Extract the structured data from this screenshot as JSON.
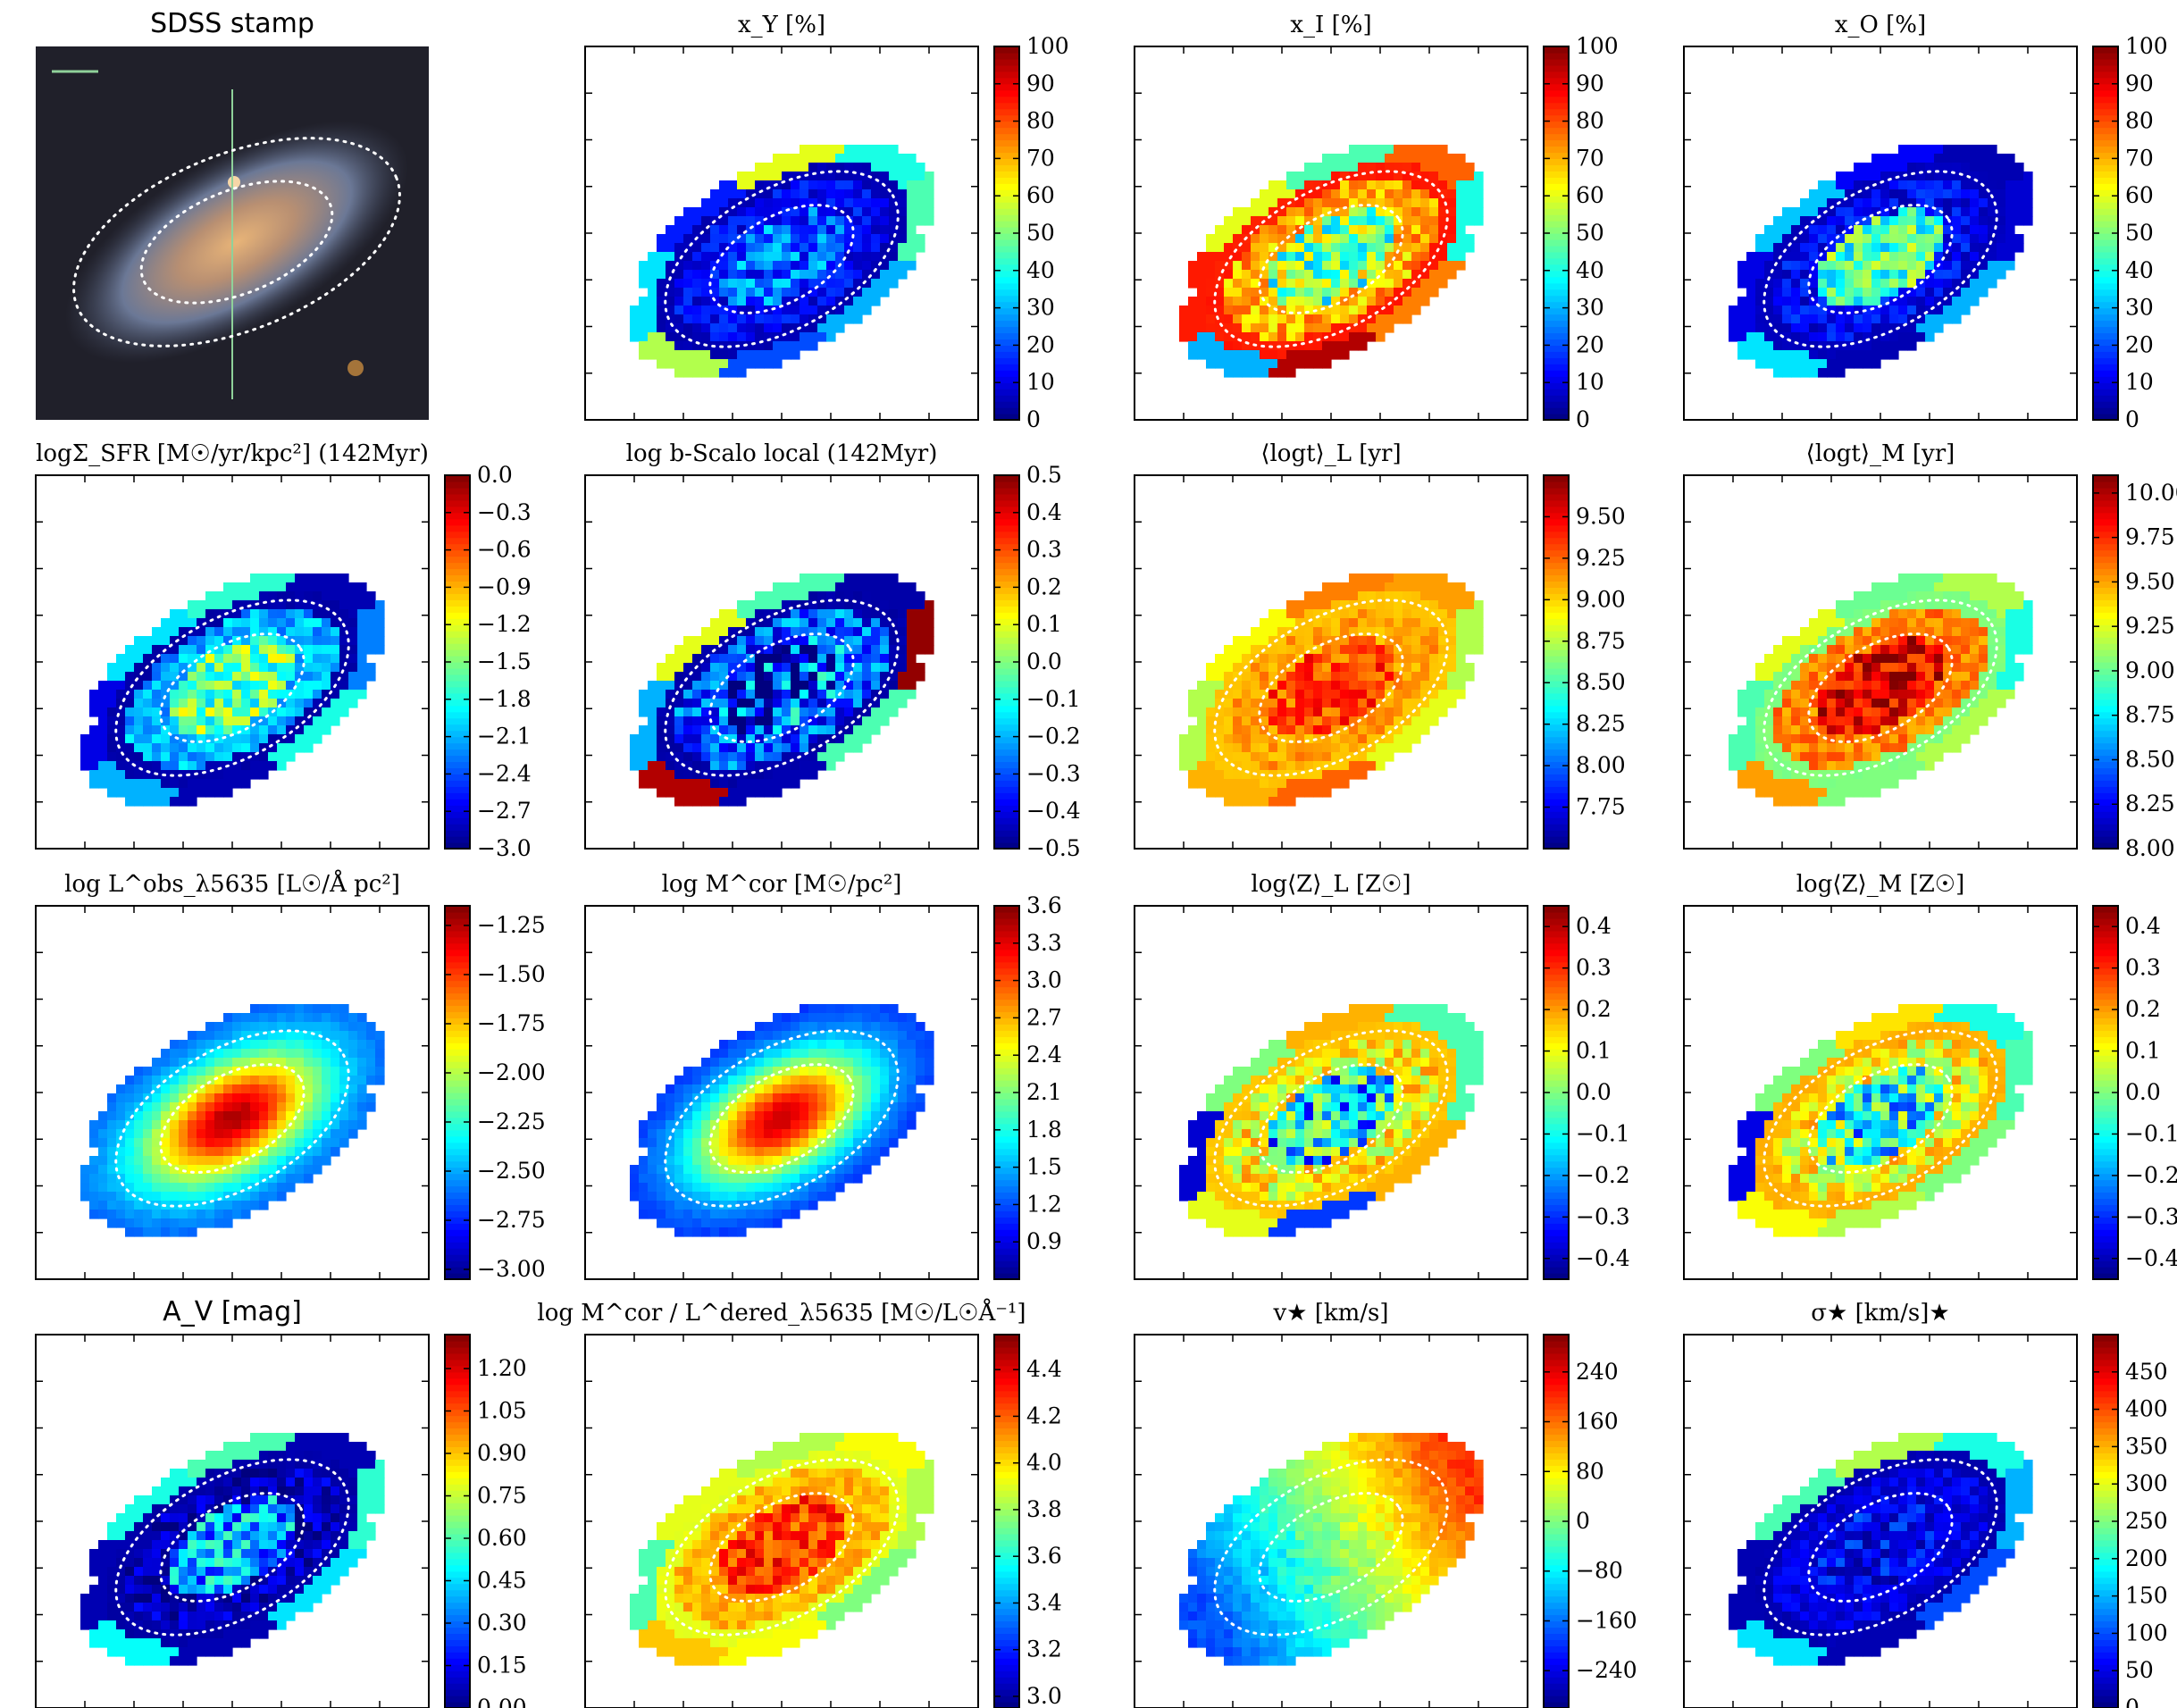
{
  "figure": {
    "colormap": "jet",
    "jet_stops": [
      "#00007f",
      "#0000ff",
      "#007fff",
      "#00ffff",
      "#7fff7f",
      "#ffff00",
      "#ff7f00",
      "#ff0000",
      "#7f0000"
    ],
    "region_outline_color": "#ffffff"
  },
  "chart_data": [
    {
      "type": "image",
      "id": "sdss",
      "title": "SDSS stamp",
      "background_color": "#20202a",
      "galaxy_colors": [
        "#e8b478",
        "#b88f72",
        "#6b7896",
        "#3a4054"
      ],
      "slit_color": "#8fd19a",
      "scale_bar_color": "#8fd19a"
    },
    {
      "type": "heatmap",
      "id": "xY",
      "title": "x_Y [%]",
      "colorbar": {
        "ticks": [
          0,
          10,
          20,
          30,
          40,
          50,
          60,
          70,
          80,
          90,
          100
        ],
        "tick_labels": [
          "0",
          "10",
          "20",
          "30",
          "40",
          "50",
          "60",
          "70",
          "80",
          "90",
          "100"
        ],
        "range": [
          0,
          100
        ]
      },
      "zones": {
        "core": 0.22,
        "inner_ring": 0.12,
        "outer_ring": 0.05,
        "outer_zones": [
          0.45,
          0.3,
          0.2,
          0.55,
          0.35,
          0.15,
          0.6,
          0.4
        ],
        "noise": 0.14
      }
    },
    {
      "type": "heatmap",
      "id": "xI",
      "title": "x_I [%]",
      "colorbar": {
        "ticks": [
          0,
          10,
          20,
          30,
          40,
          50,
          60,
          70,
          80,
          90,
          100
        ],
        "tick_labels": [
          "0",
          "10",
          "20",
          "30",
          "40",
          "50",
          "60",
          "70",
          "80",
          "90",
          "100"
        ],
        "range": [
          0,
          100
        ]
      },
      "zones": {
        "core": 0.5,
        "inner_ring": 0.7,
        "outer_ring": 0.85,
        "outer_zones": [
          0.4,
          0.75,
          0.95,
          0.3,
          0.85,
          0.6,
          0.45,
          0.78
        ],
        "noise": 0.2
      }
    },
    {
      "type": "heatmap",
      "id": "xO",
      "title": "x_O [%]",
      "colorbar": {
        "ticks": [
          0,
          10,
          20,
          30,
          40,
          50,
          60,
          70,
          80,
          90,
          100
        ],
        "tick_labels": [
          "0",
          "10",
          "20",
          "30",
          "40",
          "50",
          "60",
          "70",
          "80",
          "90",
          "100"
        ],
        "range": [
          0,
          100
        ]
      },
      "zones": {
        "core": 0.45,
        "inner_ring": 0.12,
        "outer_ring": 0.06,
        "outer_zones": [
          0.08,
          0.3,
          0.05,
          0.35,
          0.1,
          0.32,
          0.12,
          0.05
        ],
        "noise": 0.15
      }
    },
    {
      "type": "heatmap",
      "id": "sfr",
      "title": "logΣ_SFR [M☉/yr/kpc²] (142Myr)",
      "colorbar": {
        "ticks": [
          -3.0,
          -2.7,
          -2.4,
          -2.1,
          -1.8,
          -1.5,
          -1.2,
          -0.9,
          -0.6,
          -0.3,
          0.0
        ],
        "tick_labels": [
          "−3.0",
          "−2.7",
          "−2.4",
          "−2.1",
          "−1.8",
          "−1.5",
          "−1.2",
          "−0.9",
          "−0.6",
          "−0.3",
          "0.0"
        ],
        "range": [
          -3.0,
          0.0
        ]
      },
      "zones": {
        "core": 0.48,
        "inner_ring": 0.3,
        "outer_ring": 0.04,
        "outer_zones": [
          0.25,
          0.4,
          0.05,
          0.3,
          0.1,
          0.35,
          0.42,
          0.05
        ],
        "noise": 0.16
      }
    },
    {
      "type": "heatmap",
      "id": "bscalo",
      "title": "log b-Scalo local (142Myr)",
      "colorbar": {
        "ticks": [
          -0.5,
          -0.4,
          -0.3,
          -0.2,
          -0.1,
          0.0,
          0.1,
          0.2,
          0.3,
          0.4,
          0.5
        ],
        "tick_labels": [
          "−0.5",
          "−0.4",
          "−0.3",
          "−0.2",
          "−0.1",
          "0.0",
          "0.1",
          "0.2",
          "0.3",
          "0.4",
          "0.5"
        ],
        "range": [
          -0.5,
          0.5
        ]
      },
      "zones": {
        "core": 0.15,
        "inner_ring": 0.2,
        "outer_ring": 0.04,
        "outer_zones": [
          0.98,
          0.45,
          0.05,
          0.95,
          0.3,
          0.6,
          0.45,
          0.04
        ],
        "noise": 0.3
      }
    },
    {
      "type": "heatmap",
      "id": "agel",
      "title": "⟨logt⟩_L [yr]",
      "colorbar": {
        "ticks": [
          7.75,
          8.0,
          8.25,
          8.5,
          8.75,
          9.0,
          9.25,
          9.5
        ],
        "tick_labels": [
          "7.75",
          "8.00",
          "8.25",
          "8.50",
          "8.75",
          "9.00",
          "9.25",
          "9.50"
        ],
        "range": [
          7.5,
          9.75
        ]
      },
      "zones": {
        "core": 0.8,
        "inner_ring": 0.72,
        "outer_ring": 0.68,
        "outer_zones": [
          0.55,
          0.6,
          0.78,
          0.7,
          0.55,
          0.62,
          0.75,
          0.72
        ],
        "noise": 0.1
      }
    },
    {
      "type": "heatmap",
      "id": "agem",
      "title": "⟨logt⟩_M [yr]",
      "colorbar": {
        "ticks": [
          8.0,
          8.25,
          8.5,
          8.75,
          9.0,
          9.25,
          9.5,
          9.75,
          10.0
        ],
        "tick_labels": [
          "8.00",
          "8.25",
          "8.50",
          "8.75",
          "9.00",
          "9.25",
          "9.50",
          "9.75",
          "10.00"
        ],
        "range": [
          8.0,
          10.1
        ]
      },
      "zones": {
        "core": 0.9,
        "inner_ring": 0.75,
        "outer_ring": 0.5,
        "outer_zones": [
          0.4,
          0.55,
          0.5,
          0.72,
          0.45,
          0.6,
          0.48,
          0.55
        ],
        "noise": 0.12
      }
    },
    {
      "type": "heatmap",
      "id": "lum",
      "title": "log L^obs_λ5635 [L☉/Å pc²]",
      "smooth": true,
      "colorbar": {
        "ticks": [
          -3.0,
          -2.75,
          -2.5,
          -2.25,
          -2.0,
          -1.75,
          -1.5,
          -1.25
        ],
        "tick_labels": [
          "−3.00",
          "−2.75",
          "−2.50",
          "−2.25",
          "−2.00",
          "−1.75",
          "−1.50",
          "−1.25"
        ],
        "range": [
          -3.05,
          -1.15
        ]
      },
      "gradient": {
        "center": 0.95,
        "edge": 0.2
      }
    },
    {
      "type": "heatmap",
      "id": "mass",
      "title": "log M^cor [M☉/pc²]",
      "smooth": true,
      "colorbar": {
        "ticks": [
          0.9,
          1.2,
          1.5,
          1.8,
          2.1,
          2.4,
          2.7,
          3.0,
          3.3,
          3.6
        ],
        "tick_labels": [
          "0.9",
          "1.2",
          "1.5",
          "1.8",
          "2.1",
          "2.4",
          "2.7",
          "3.0",
          "3.3",
          "3.6"
        ],
        "range": [
          0.6,
          3.6
        ]
      },
      "gradient": {
        "center": 0.92,
        "edge": 0.15
      }
    },
    {
      "type": "heatmap",
      "id": "zl",
      "title": "log⟨Z⟩_L [Z☉]",
      "colorbar": {
        "ticks": [
          -0.4,
          -0.3,
          -0.2,
          -0.1,
          0.0,
          0.1,
          0.2,
          0.3,
          0.4
        ],
        "tick_labels": [
          "−0.4",
          "−0.3",
          "−0.2",
          "−0.1",
          "0.0",
          "0.1",
          "0.2",
          "0.3",
          "0.4"
        ],
        "range": [
          -0.45,
          0.45
        ]
      },
      "zones": {
        "core": 0.35,
        "inner_ring": 0.62,
        "outer_ring": 0.68,
        "outer_zones": [
          0.45,
          0.7,
          0.18,
          0.6,
          0.08,
          0.5,
          0.7,
          0.45
        ],
        "noise": 0.25
      }
    },
    {
      "type": "heatmap",
      "id": "zm",
      "title": "log⟨Z⟩_M [Z☉]",
      "colorbar": {
        "ticks": [
          -0.4,
          -0.3,
          -0.2,
          -0.1,
          0.0,
          0.1,
          0.2,
          0.3,
          0.4
        ],
        "tick_labels": [
          "−0.4",
          "−0.3",
          "−0.2",
          "−0.1",
          "0.0",
          "0.1",
          "0.2",
          "0.3",
          "0.4"
        ],
        "range": [
          -0.45,
          0.45
        ]
      },
      "zones": {
        "core": 0.4,
        "inner_ring": 0.62,
        "outer_ring": 0.7,
        "outer_zones": [
          0.45,
          0.5,
          0.55,
          0.62,
          0.1,
          0.5,
          0.65,
          0.4
        ],
        "noise": 0.25
      }
    },
    {
      "type": "heatmap",
      "id": "av",
      "title": "A_V [mag]",
      "colorbar": {
        "ticks": [
          0.0,
          0.15,
          0.3,
          0.45,
          0.6,
          0.75,
          0.9,
          1.05,
          1.2
        ],
        "tick_labels": [
          "0.00",
          "0.15",
          "0.30",
          "0.45",
          "0.60",
          "0.75",
          "0.90",
          "1.05",
          "1.20"
        ],
        "range": [
          0.0,
          1.32
        ]
      },
      "zones": {
        "core": 0.28,
        "inner_ring": 0.05,
        "outer_ring": 0.04,
        "outer_zones": [
          0.42,
          0.35,
          0.05,
          0.38,
          0.05,
          0.4,
          0.45,
          0.05
        ],
        "noise": 0.18
      }
    },
    {
      "type": "heatmap",
      "id": "ml",
      "title": "log M^cor / L^dered_λ5635 [M☉/L☉Å⁻¹]",
      "colorbar": {
        "ticks": [
          3.0,
          3.2,
          3.4,
          3.6,
          3.8,
          4.0,
          4.2,
          4.4
        ],
        "tick_labels": [
          "3.0",
          "3.2",
          "3.4",
          "3.6",
          "3.8",
          "4.0",
          "4.2",
          "4.4"
        ],
        "range": [
          2.95,
          4.55
        ]
      },
      "zones": {
        "core": 0.82,
        "inner_ring": 0.7,
        "outer_ring": 0.6,
        "outer_zones": [
          0.55,
          0.5,
          0.62,
          0.68,
          0.45,
          0.6,
          0.55,
          0.62
        ],
        "noise": 0.1
      }
    },
    {
      "type": "heatmap",
      "id": "vel",
      "title": "v★ [km/s]",
      "colorbar": {
        "ticks": [
          -240,
          -160,
          -80,
          0,
          80,
          160,
          240
        ],
        "tick_labels": [
          "−240",
          "−160",
          "−80",
          "0",
          "80",
          "160",
          "240"
        ],
        "range": [
          -300,
          300
        ]
      },
      "velocity": true,
      "zones": {
        "noise": 0.06
      }
    },
    {
      "type": "heatmap",
      "id": "sig",
      "title": "σ★ [km/s]★",
      "colorbar": {
        "ticks": [
          0,
          50,
          100,
          150,
          200,
          250,
          300,
          350,
          400,
          450
        ],
        "tick_labels": [
          "0",
          "50",
          "100",
          "150",
          "200",
          "250",
          "300",
          "350",
          "400",
          "450"
        ],
        "range": [
          0,
          500
        ]
      },
      "zones": {
        "core": 0.12,
        "inner_ring": 0.1,
        "outer_ring": 0.05,
        "outer_zones": [
          0.3,
          0.2,
          0.05,
          0.35,
          0.05,
          0.45,
          0.55,
          0.4
        ],
        "noise": 0.1
      }
    }
  ]
}
